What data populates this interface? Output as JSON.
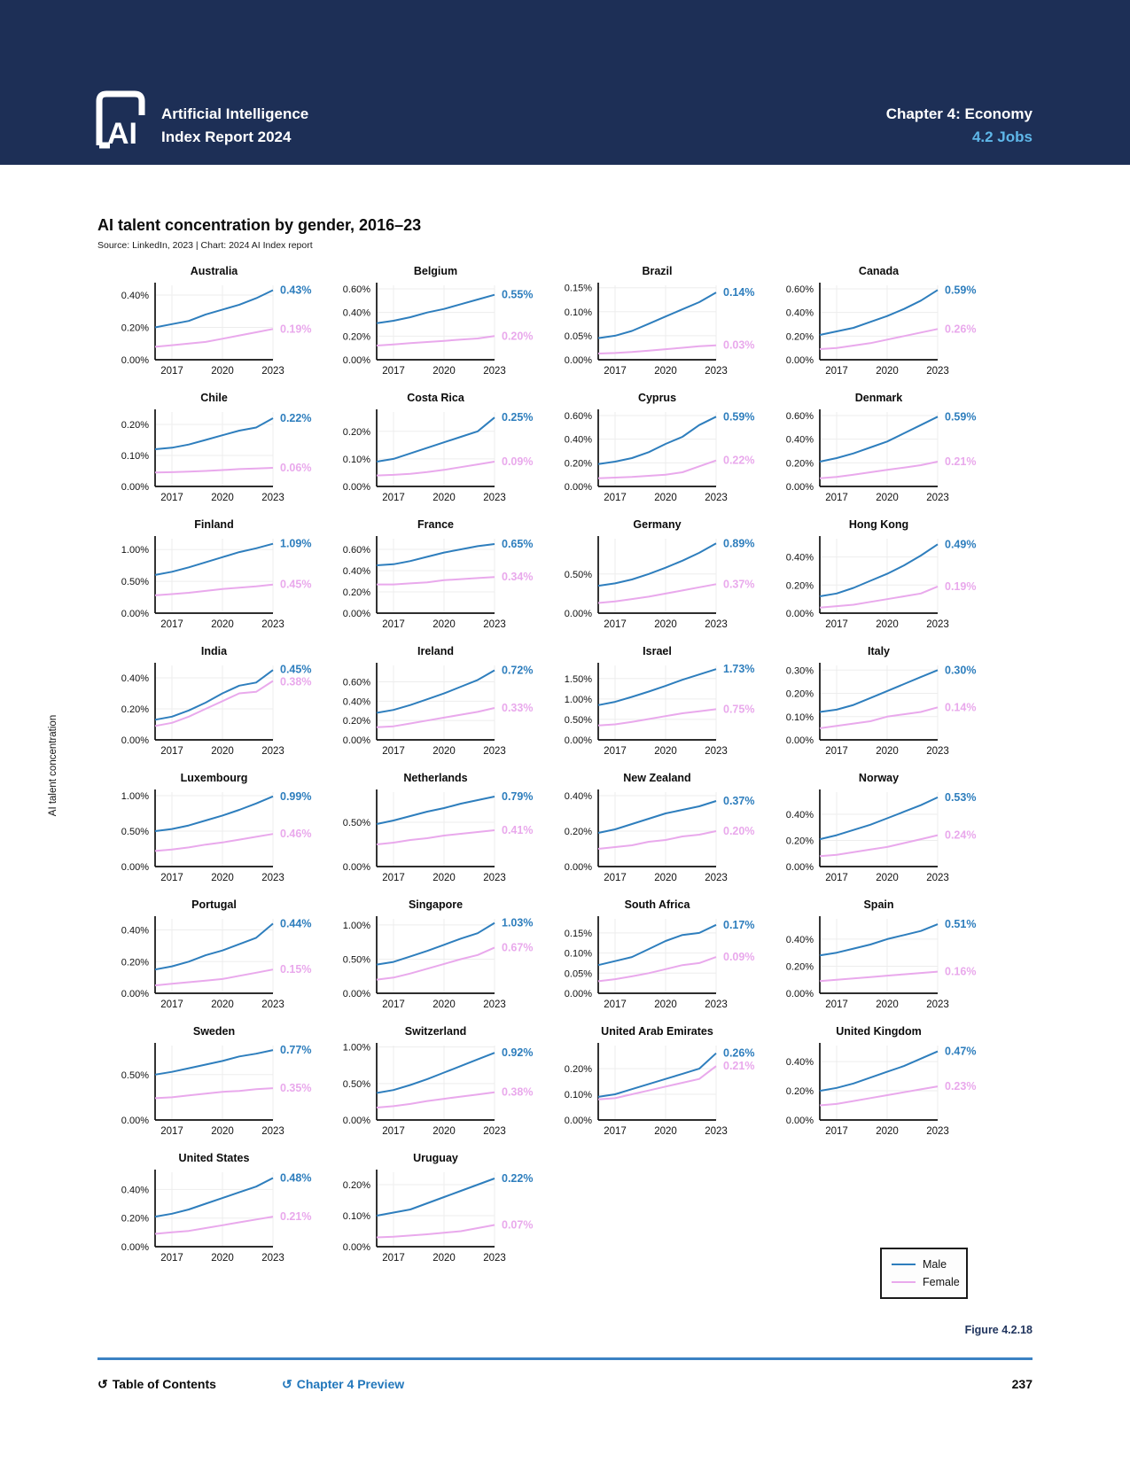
{
  "header": {
    "logo_text": "AI",
    "brand_line1": "Artificial Intelligence",
    "brand_line2": "Index Report 2024",
    "chapter": "Chapter 4: Economy",
    "section": "4.2 Jobs"
  },
  "title_block": {
    "title": "AI talent concentration by gender, 2016–23",
    "source": "Source: LinkedIn, 2023 | Chart: 2024 AI Index report"
  },
  "figure_label": "Figure 4.2.18",
  "footer": {
    "toc_label": "Table of Contents",
    "preview_label": "Chapter 4 Preview",
    "page_number": "237",
    "back_glyph": "↺"
  },
  "colors": {
    "header_bg": "#1d2f56",
    "section_blue": "#5fb7e9",
    "male": "#2e7ebd",
    "female": "#e9a9ec",
    "grid": "#ededed",
    "axis": "#111111",
    "link_blue": "#2277bb",
    "rule_blue": "#3b82c3",
    "figure_color": "#21355e"
  },
  "legend": {
    "items": [
      {
        "label": "Male",
        "color_key": "male"
      },
      {
        "label": "Female",
        "color_key": "female"
      }
    ]
  },
  "chart_data": {
    "type": "line",
    "title": "AI talent concentration by gender, 2016–23",
    "ylabel": "AI talent concentration",
    "x": [
      2016,
      2017,
      2018,
      2019,
      2020,
      2021,
      2022,
      2023
    ],
    "x_ticks": [
      2017,
      2020,
      2023
    ],
    "series_names": [
      "Male",
      "Female"
    ],
    "legend_position": "bottom-right",
    "grid": true,
    "charts": [
      {
        "country": "Australia",
        "yticks": [
          0,
          0.2,
          0.4
        ],
        "ylim": 0.46,
        "male": [
          0.2,
          0.22,
          0.24,
          0.28,
          0.31,
          0.34,
          0.38,
          0.43
        ],
        "female": [
          0.08,
          0.09,
          0.1,
          0.11,
          0.13,
          0.15,
          0.17,
          0.19
        ],
        "male_label": "0.43%",
        "female_label": "0.19%"
      },
      {
        "country": "Belgium",
        "yticks": [
          0,
          0.2,
          0.4,
          0.6
        ],
        "ylim": 0.63,
        "male": [
          0.31,
          0.33,
          0.36,
          0.4,
          0.43,
          0.47,
          0.51,
          0.55
        ],
        "female": [
          0.12,
          0.13,
          0.14,
          0.15,
          0.16,
          0.17,
          0.18,
          0.2
        ],
        "male_label": "0.55%",
        "female_label": "0.20%"
      },
      {
        "country": "Brazil",
        "yticks": [
          0,
          0.05,
          0.1,
          0.15
        ],
        "ylim": 0.155,
        "male": [
          0.045,
          0.05,
          0.06,
          0.075,
          0.09,
          0.105,
          0.12,
          0.14
        ],
        "female": [
          0.013,
          0.014,
          0.016,
          0.019,
          0.022,
          0.025,
          0.028,
          0.03
        ],
        "male_label": "0.14%",
        "female_label": "0.03%"
      },
      {
        "country": "Canada",
        "yticks": [
          0,
          0.2,
          0.4,
          0.6
        ],
        "ylim": 0.63,
        "male": [
          0.21,
          0.24,
          0.27,
          0.32,
          0.37,
          0.43,
          0.5,
          0.59
        ],
        "female": [
          0.09,
          0.1,
          0.12,
          0.14,
          0.17,
          0.2,
          0.23,
          0.26
        ],
        "male_label": "0.59%",
        "female_label": "0.26%"
      },
      {
        "country": "Chile",
        "yticks": [
          0,
          0.1,
          0.2
        ],
        "ylim": 0.24,
        "male": [
          0.12,
          0.125,
          0.135,
          0.15,
          0.165,
          0.18,
          0.19,
          0.22
        ],
        "female": [
          0.045,
          0.046,
          0.048,
          0.05,
          0.053,
          0.056,
          0.058,
          0.06
        ],
        "male_label": "0.22%",
        "female_label": "0.06%"
      },
      {
        "country": "Costa Rica",
        "yticks": [
          0,
          0.1,
          0.2
        ],
        "ylim": 0.27,
        "male": [
          0.09,
          0.1,
          0.12,
          0.14,
          0.16,
          0.18,
          0.2,
          0.25
        ],
        "female": [
          0.04,
          0.042,
          0.046,
          0.052,
          0.06,
          0.07,
          0.08,
          0.09
        ],
        "male_label": "0.25%",
        "female_label": "0.09%"
      },
      {
        "country": "Cyprus",
        "yticks": [
          0,
          0.2,
          0.4,
          0.6
        ],
        "ylim": 0.63,
        "male": [
          0.19,
          0.21,
          0.24,
          0.29,
          0.36,
          0.42,
          0.52,
          0.59
        ],
        "female": [
          0.07,
          0.075,
          0.08,
          0.09,
          0.1,
          0.12,
          0.17,
          0.22
        ],
        "male_label": "0.59%",
        "female_label": "0.22%"
      },
      {
        "country": "Denmark",
        "yticks": [
          0,
          0.2,
          0.4,
          0.6
        ],
        "ylim": 0.63,
        "male": [
          0.21,
          0.24,
          0.28,
          0.33,
          0.38,
          0.45,
          0.52,
          0.59
        ],
        "female": [
          0.07,
          0.08,
          0.1,
          0.12,
          0.14,
          0.16,
          0.18,
          0.21
        ],
        "male_label": "0.59%",
        "female_label": "0.21%"
      },
      {
        "country": "Finland",
        "yticks": [
          0,
          0.5,
          1.0
        ],
        "ylim": 1.17,
        "male": [
          0.6,
          0.65,
          0.72,
          0.8,
          0.88,
          0.96,
          1.02,
          1.09
        ],
        "female": [
          0.28,
          0.3,
          0.32,
          0.35,
          0.38,
          0.4,
          0.42,
          0.45
        ],
        "male_label": "1.09%",
        "female_label": "0.45%"
      },
      {
        "country": "France",
        "yticks": [
          0,
          0.2,
          0.4,
          0.6
        ],
        "ylim": 0.7,
        "male": [
          0.45,
          0.46,
          0.49,
          0.53,
          0.57,
          0.6,
          0.63,
          0.65
        ],
        "female": [
          0.27,
          0.27,
          0.28,
          0.29,
          0.31,
          0.32,
          0.33,
          0.34
        ],
        "male_label": "0.65%",
        "female_label": "0.34%"
      },
      {
        "country": "Germany",
        "yticks": [
          0,
          0.5
        ],
        "ylim": 0.95,
        "male": [
          0.35,
          0.38,
          0.43,
          0.5,
          0.58,
          0.67,
          0.77,
          0.89
        ],
        "female": [
          0.13,
          0.15,
          0.18,
          0.21,
          0.25,
          0.29,
          0.33,
          0.37
        ],
        "male_label": "0.89%",
        "female_label": "0.37%"
      },
      {
        "country": "Hong Kong",
        "yticks": [
          0,
          0.2,
          0.4
        ],
        "ylim": 0.53,
        "male": [
          0.12,
          0.14,
          0.18,
          0.23,
          0.28,
          0.34,
          0.41,
          0.49
        ],
        "female": [
          0.04,
          0.05,
          0.06,
          0.08,
          0.1,
          0.12,
          0.14,
          0.19
        ],
        "male_label": "0.49%",
        "female_label": "0.19%"
      },
      {
        "country": "India",
        "yticks": [
          0,
          0.2,
          0.4
        ],
        "ylim": 0.48,
        "male": [
          0.13,
          0.15,
          0.19,
          0.24,
          0.3,
          0.35,
          0.37,
          0.45
        ],
        "female": [
          0.09,
          0.11,
          0.15,
          0.2,
          0.25,
          0.3,
          0.31,
          0.38
        ],
        "male_label": "0.45%",
        "female_label": "0.38%"
      },
      {
        "country": "Ireland",
        "yticks": [
          0,
          0.2,
          0.4,
          0.6
        ],
        "ylim": 0.77,
        "male": [
          0.28,
          0.31,
          0.36,
          0.42,
          0.48,
          0.55,
          0.62,
          0.72
        ],
        "female": [
          0.13,
          0.14,
          0.17,
          0.2,
          0.23,
          0.26,
          0.29,
          0.33
        ],
        "male_label": "0.72%",
        "female_label": "0.33%"
      },
      {
        "country": "Israel",
        "yticks": [
          0,
          0.5,
          1.0,
          1.5
        ],
        "ylim": 1.82,
        "male": [
          0.85,
          0.93,
          1.05,
          1.18,
          1.32,
          1.47,
          1.6,
          1.73
        ],
        "female": [
          0.35,
          0.38,
          0.44,
          0.51,
          0.58,
          0.65,
          0.7,
          0.75
        ],
        "male_label": "1.73%",
        "female_label": "0.75%"
      },
      {
        "country": "Italy",
        "yticks": [
          0,
          0.1,
          0.2,
          0.3
        ],
        "ylim": 0.32,
        "male": [
          0.12,
          0.13,
          0.15,
          0.18,
          0.21,
          0.24,
          0.27,
          0.3
        ],
        "female": [
          0.05,
          0.06,
          0.07,
          0.08,
          0.1,
          0.11,
          0.12,
          0.14
        ],
        "male_label": "0.30%",
        "female_label": "0.14%"
      },
      {
        "country": "Luxembourg",
        "yticks": [
          0,
          0.5,
          1.0
        ],
        "ylim": 1.05,
        "male": [
          0.5,
          0.53,
          0.58,
          0.65,
          0.72,
          0.8,
          0.89,
          0.99
        ],
        "female": [
          0.22,
          0.24,
          0.27,
          0.31,
          0.34,
          0.38,
          0.42,
          0.46
        ],
        "male_label": "0.99%",
        "female_label": "0.46%"
      },
      {
        "country": "Netherlands",
        "yticks": [
          0,
          0.5
        ],
        "ylim": 0.84,
        "male": [
          0.48,
          0.52,
          0.57,
          0.62,
          0.66,
          0.71,
          0.75,
          0.79
        ],
        "female": [
          0.25,
          0.27,
          0.3,
          0.32,
          0.35,
          0.37,
          0.39,
          0.41
        ],
        "male_label": "0.79%",
        "female_label": "0.41%"
      },
      {
        "country": "New Zealand",
        "yticks": [
          0,
          0.2,
          0.4
        ],
        "ylim": 0.42,
        "male": [
          0.19,
          0.21,
          0.24,
          0.27,
          0.3,
          0.32,
          0.34,
          0.37
        ],
        "female": [
          0.1,
          0.11,
          0.12,
          0.14,
          0.15,
          0.17,
          0.18,
          0.2
        ],
        "male_label": "0.37%",
        "female_label": "0.20%"
      },
      {
        "country": "Norway",
        "yticks": [
          0,
          0.2,
          0.4
        ],
        "ylim": 0.57,
        "male": [
          0.21,
          0.24,
          0.28,
          0.32,
          0.37,
          0.42,
          0.47,
          0.53
        ],
        "female": [
          0.08,
          0.09,
          0.11,
          0.13,
          0.15,
          0.18,
          0.21,
          0.24
        ],
        "male_label": "0.53%",
        "female_label": "0.24%"
      },
      {
        "country": "Portugal",
        "yticks": [
          0,
          0.2,
          0.4
        ],
        "ylim": 0.47,
        "male": [
          0.15,
          0.17,
          0.2,
          0.24,
          0.27,
          0.31,
          0.35,
          0.44
        ],
        "female": [
          0.05,
          0.06,
          0.07,
          0.08,
          0.09,
          0.11,
          0.13,
          0.15
        ],
        "male_label": "0.44%",
        "female_label": "0.15%"
      },
      {
        "country": "Singapore",
        "yticks": [
          0,
          0.5,
          1.0
        ],
        "ylim": 1.09,
        "male": [
          0.42,
          0.46,
          0.54,
          0.62,
          0.71,
          0.8,
          0.88,
          1.03
        ],
        "female": [
          0.2,
          0.23,
          0.29,
          0.36,
          0.43,
          0.5,
          0.56,
          0.67
        ],
        "male_label": "1.03%",
        "female_label": "0.67%"
      },
      {
        "country": "South Africa",
        "yticks": [
          0,
          0.05,
          0.1,
          0.15
        ],
        "ylim": 0.185,
        "male": [
          0.07,
          0.08,
          0.09,
          0.11,
          0.13,
          0.145,
          0.15,
          0.17
        ],
        "female": [
          0.03,
          0.035,
          0.042,
          0.05,
          0.06,
          0.07,
          0.075,
          0.09
        ],
        "male_label": "0.17%",
        "female_label": "0.09%"
      },
      {
        "country": "Spain",
        "yticks": [
          0,
          0.2,
          0.4
        ],
        "ylim": 0.55,
        "male": [
          0.28,
          0.3,
          0.33,
          0.36,
          0.4,
          0.43,
          0.46,
          0.51
        ],
        "female": [
          0.09,
          0.1,
          0.11,
          0.12,
          0.13,
          0.14,
          0.15,
          0.16
        ],
        "male_label": "0.51%",
        "female_label": "0.16%"
      },
      {
        "country": "Sweden",
        "yticks": [
          0,
          0.5
        ],
        "ylim": 0.82,
        "male": [
          0.5,
          0.53,
          0.57,
          0.61,
          0.65,
          0.7,
          0.73,
          0.77
        ],
        "female": [
          0.24,
          0.25,
          0.27,
          0.29,
          0.31,
          0.32,
          0.34,
          0.35
        ],
        "male_label": "0.77%",
        "female_label": "0.35%"
      },
      {
        "country": "Switzerland",
        "yticks": [
          0,
          0.5,
          1.0
        ],
        "ylim": 1.02,
        "male": [
          0.37,
          0.41,
          0.48,
          0.56,
          0.65,
          0.74,
          0.83,
          0.92
        ],
        "female": [
          0.17,
          0.19,
          0.22,
          0.26,
          0.29,
          0.32,
          0.35,
          0.38
        ],
        "male_label": "0.92%",
        "female_label": "0.38%"
      },
      {
        "country": "United Arab Emirates",
        "yticks": [
          0,
          0.1,
          0.2
        ],
        "ylim": 0.29,
        "male": [
          0.09,
          0.1,
          0.12,
          0.14,
          0.16,
          0.18,
          0.2,
          0.26
        ],
        "female": [
          0.08,
          0.085,
          0.1,
          0.115,
          0.13,
          0.145,
          0.16,
          0.21
        ],
        "male_label": "0.26%",
        "female_label": "0.21%"
      },
      {
        "country": "United Kingdom",
        "yticks": [
          0,
          0.2,
          0.4
        ],
        "ylim": 0.51,
        "male": [
          0.2,
          0.22,
          0.25,
          0.29,
          0.33,
          0.37,
          0.42,
          0.47
        ],
        "female": [
          0.1,
          0.11,
          0.13,
          0.15,
          0.17,
          0.19,
          0.21,
          0.23
        ],
        "male_label": "0.47%",
        "female_label": "0.23%"
      },
      {
        "country": "United States",
        "yticks": [
          0,
          0.2,
          0.4
        ],
        "ylim": 0.52,
        "male": [
          0.21,
          0.23,
          0.26,
          0.3,
          0.34,
          0.38,
          0.42,
          0.48
        ],
        "female": [
          0.09,
          0.1,
          0.11,
          0.13,
          0.15,
          0.17,
          0.19,
          0.21
        ],
        "male_label": "0.48%",
        "female_label": "0.21%"
      },
      {
        "country": "Uruguay",
        "yticks": [
          0,
          0.1,
          0.2
        ],
        "ylim": 0.24,
        "male": [
          0.1,
          0.11,
          0.12,
          0.14,
          0.16,
          0.18,
          0.2,
          0.22
        ],
        "female": [
          0.03,
          0.032,
          0.036,
          0.04,
          0.045,
          0.05,
          0.06,
          0.07
        ],
        "male_label": "0.22%",
        "female_label": "0.07%"
      }
    ]
  }
}
